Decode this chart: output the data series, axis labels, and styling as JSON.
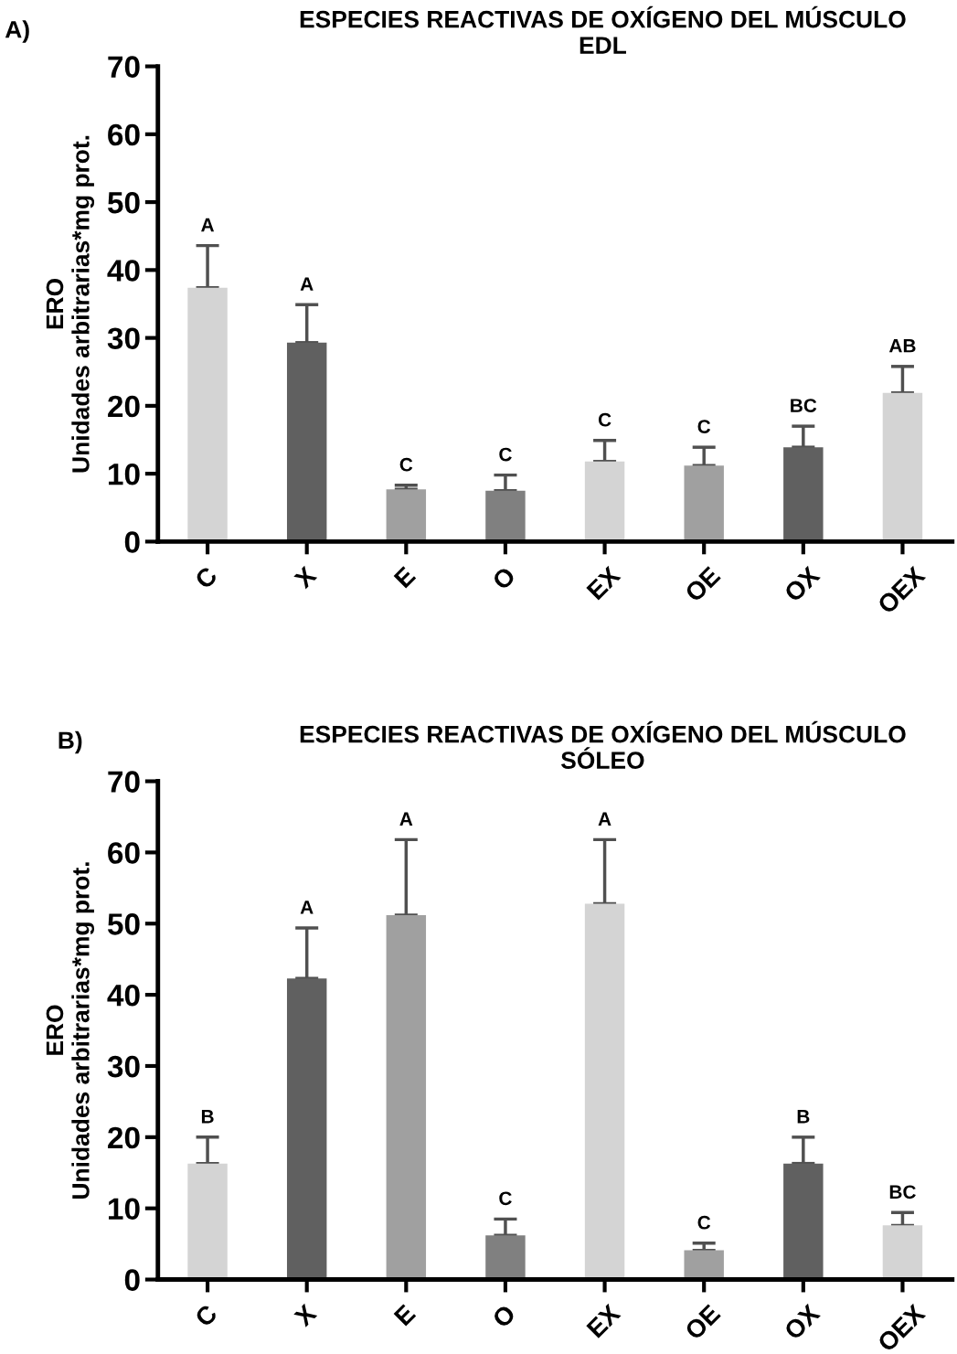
{
  "chart_data": [
    {
      "type": "bar",
      "title": "ESPECIES REACTIVAS DE OXÍGENO DEL MÚSCULO\nEDL",
      "ylabel": "ERO\nUnidades arbitrarias*mg prot.",
      "categories": [
        "C",
        "X",
        "E",
        "O",
        "EX",
        "OE",
        "OX",
        "OEX"
      ],
      "values": [
        37.4,
        29.3,
        7.7,
        7.5,
        11.8,
        11.2,
        13.9,
        21.9
      ],
      "errors": [
        [
          37.4,
          43.6
        ],
        [
          29.3,
          34.9
        ],
        [
          7.7,
          8.3
        ],
        [
          7.5,
          9.8
        ],
        [
          11.8,
          14.9
        ],
        [
          11.2,
          13.9
        ],
        [
          13.9,
          17.0
        ],
        [
          21.9,
          25.8
        ]
      ],
      "colors": [
        "#d4d4d4",
        "#606060",
        "#a0a0a0",
        "#808080",
        "#d4d4d4",
        "#a0a0a0",
        "#606060",
        "#d4d4d4"
      ],
      "ylim": [
        0,
        70
      ],
      "yticks": [
        0,
        10,
        20,
        30,
        40,
        50,
        60,
        70
      ],
      "grid": false,
      "legend": false,
      "annotations": [
        "A)",
        {
          "text": "A",
          "x": "C",
          "y": 43.6
        },
        {
          "text": "A",
          "x": "X",
          "y": 34.9
        },
        {
          "text": "C",
          "x": "E",
          "y": 8.3
        },
        {
          "text": "C",
          "x": "O",
          "y": 9.8
        },
        {
          "text": "C",
          "x": "EX",
          "y": 14.9
        },
        {
          "text": "C",
          "x": "OE",
          "y": 13.9
        },
        {
          "text": "BC",
          "x": "OX",
          "y": 17.0
        },
        {
          "text": "AB",
          "x": "OEX",
          "y": 25.8
        }
      ]
    },
    {
      "type": "bar",
      "title": "ESPECIES REACTIVAS DE OXÍGENO DEL MÚSCULO\nSÓLEO",
      "ylabel": "ERO\nUnidades arbitrarias*mg prot.",
      "categories": [
        "C",
        "X",
        "E",
        "O",
        "EX",
        "OE",
        "OX",
        "OEX"
      ],
      "values": [
        16.3,
        42.3,
        51.2,
        6.2,
        52.8,
        4.1,
        16.3,
        7.6
      ],
      "errors": [
        [
          16.3,
          20.0
        ],
        [
          42.3,
          49.4
        ],
        [
          51.2,
          61.8
        ],
        [
          6.2,
          8.5
        ],
        [
          52.8,
          61.8
        ],
        [
          4.1,
          5.1
        ],
        [
          16.3,
          20.0
        ],
        [
          7.6,
          9.4
        ]
      ],
      "colors": [
        "#d4d4d4",
        "#606060",
        "#a0a0a0",
        "#808080",
        "#d4d4d4",
        "#a0a0a0",
        "#606060",
        "#d4d4d4"
      ],
      "ylim": [
        0,
        70
      ],
      "yticks": [
        0,
        10,
        20,
        30,
        40,
        50,
        60,
        70
      ],
      "grid": false,
      "legend": false,
      "annotations": [
        "B)",
        {
          "text": "B",
          "x": "C",
          "y": 20.0
        },
        {
          "text": "A",
          "x": "X",
          "y": 49.4
        },
        {
          "text": "A",
          "x": "E",
          "y": 61.8
        },
        {
          "text": "C",
          "x": "O",
          "y": 8.5
        },
        {
          "text": "A",
          "x": "EX",
          "y": 61.8
        },
        {
          "text": "C",
          "x": "OE",
          "y": 5.1
        },
        {
          "text": "B",
          "x": "OX",
          "y": 20.0
        },
        {
          "text": "BC",
          "x": "OEX",
          "y": 9.4
        }
      ]
    }
  ]
}
